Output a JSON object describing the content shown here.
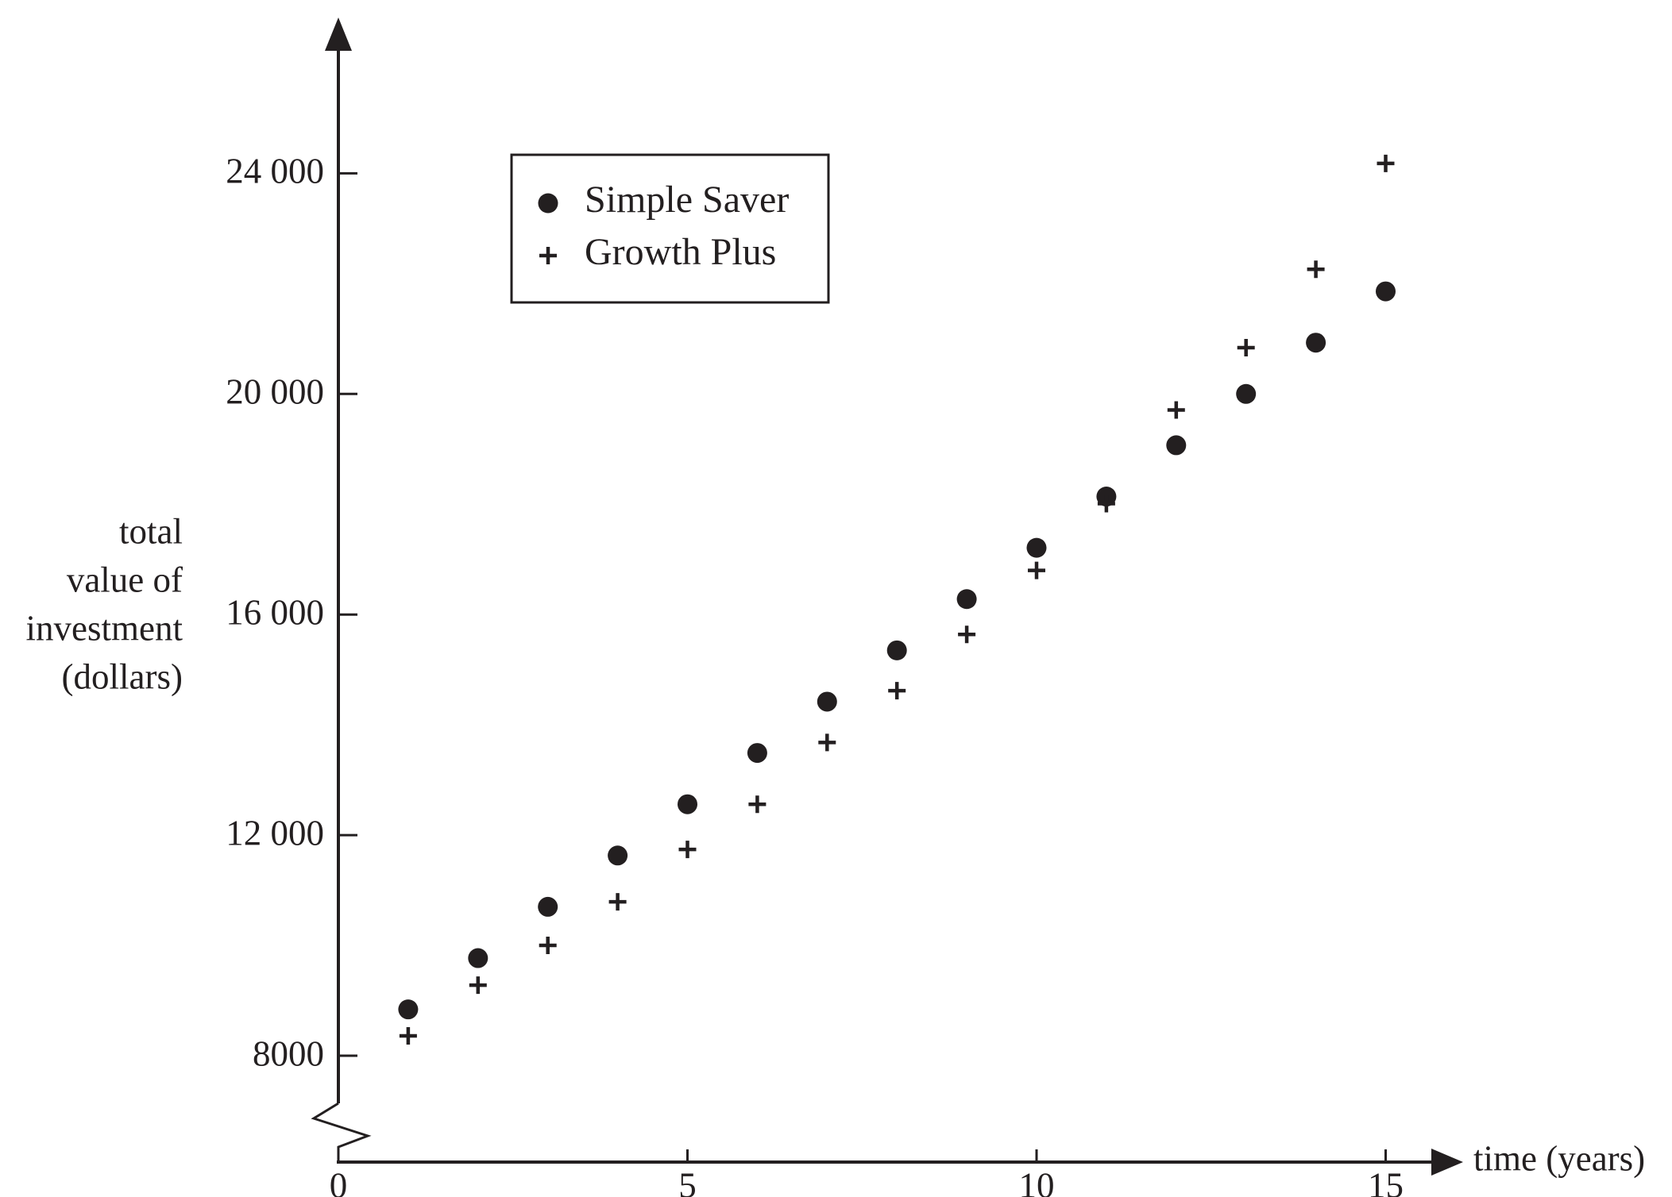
{
  "chart_data": {
    "type": "scatter",
    "title": "",
    "xlabel": "time (years)",
    "ylabel": [
      "total",
      "value of",
      "investment",
      "(dollars)"
    ],
    "xlim": [
      0,
      16
    ],
    "ylim": [
      6000,
      27500
    ],
    "y_axis_break": true,
    "grid": false,
    "legend_position": "top-left",
    "x_ticks": [
      0,
      5,
      10,
      15
    ],
    "x_tick_labels": [
      "0",
      "5",
      "10",
      "15"
    ],
    "y_ticks": [
      8000,
      12000,
      16000,
      20000,
      24000
    ],
    "y_tick_labels": [
      "8000",
      "12 000",
      "16 000",
      "20 000",
      "24 000"
    ],
    "series": [
      {
        "name": "Simple Saver",
        "marker": "dot",
        "x": [
          1,
          2,
          3,
          4,
          5,
          6,
          7,
          8,
          9,
          10,
          11,
          12,
          13,
          14,
          15
        ],
        "y": [
          8840,
          9770,
          10700,
          11630,
          12560,
          13490,
          14420,
          15350,
          16280,
          17210,
          18140,
          19070,
          20000,
          20930,
          21860
        ]
      },
      {
        "name": "Growth Plus",
        "marker": "plus",
        "x": [
          1,
          2,
          3,
          4,
          5,
          6,
          7,
          8,
          9,
          10,
          11,
          12,
          13,
          14,
          15
        ],
        "y": [
          8360,
          9280,
          10000,
          10790,
          11740,
          12560,
          13680,
          14620,
          15640,
          16800,
          18010,
          19710,
          20840,
          22260,
          24180
        ]
      }
    ]
  },
  "colors": {
    "ink": "#231f20",
    "background": "#ffffff"
  }
}
